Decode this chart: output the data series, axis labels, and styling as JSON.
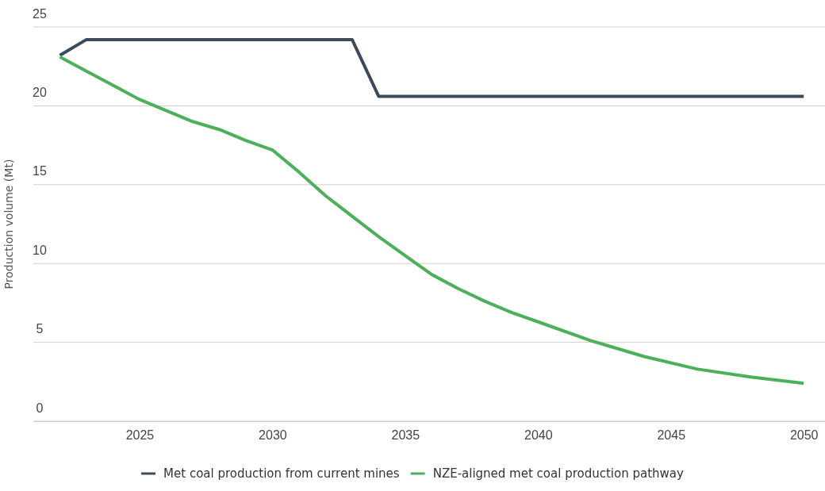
{
  "chart_data": {
    "type": "line",
    "ylabel": "Production volume (Mt)",
    "xlim": [
      2021,
      2050.8
    ],
    "xticks": [
      2025,
      2030,
      2035,
      2040,
      2045,
      2050
    ],
    "ylim": [
      0,
      25
    ],
    "yticks": [
      0,
      5,
      10,
      15,
      20,
      25
    ],
    "grid": "y",
    "legend": "bottom",
    "marker": "none",
    "line_style": "solid",
    "series": [
      {
        "name": "Met coal production from current mines",
        "color": "#3d4a5c",
        "x": [
          2022,
          2023,
          2033,
          2034,
          2050
        ],
        "values": [
          23.2,
          24.2,
          24.2,
          20.6,
          20.6
        ]
      },
      {
        "name": "NZE-aligned met coal production pathway",
        "color": "#4caf5a",
        "x": [
          2022,
          2023,
          2024,
          2025,
          2026,
          2027,
          2028,
          2029,
          2030,
          2031,
          2032,
          2033,
          2034,
          2035,
          2036,
          2037,
          2038,
          2039,
          2040,
          2042,
          2044,
          2046,
          2048,
          2050
        ],
        "values": [
          23.1,
          22.2,
          21.3,
          20.4,
          19.7,
          19.0,
          18.5,
          17.8,
          17.2,
          15.8,
          14.3,
          13.0,
          11.7,
          10.5,
          9.3,
          8.4,
          7.6,
          6.9,
          6.3,
          5.1,
          4.1,
          3.3,
          2.8,
          2.4
        ]
      }
    ]
  }
}
